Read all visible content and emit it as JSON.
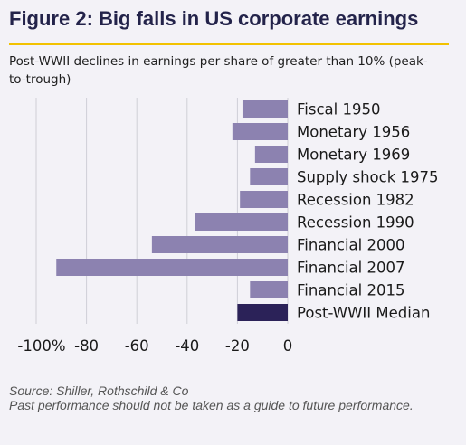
{
  "title": "Figure 2: Big falls in US corporate earnings",
  "subtitle": "Post-WWII declines in earnings per share of greater than 10% (peak-to-trough)",
  "source_line1": "Source: Shiller, Rothschild & Co",
  "source_line2": "Past performance should not be taken as a guide to future performance.",
  "chart_data": {
    "type": "bar",
    "orientation": "horizontal",
    "categories": [
      "Fiscal 1950",
      "Monetary 1956",
      "Monetary 1969",
      "Supply shock 1975",
      "Recession 1982",
      "Recession 1990",
      "Financial 2000",
      "Financial 2007",
      "Financial 2015",
      "Post-WWII Median"
    ],
    "values": [
      -18,
      -22,
      -13,
      -15,
      -19,
      -37,
      -54,
      -92,
      -15,
      -20
    ],
    "xlim": [
      -100,
      0
    ],
    "ticks": [
      -100,
      -80,
      -60,
      -40,
      -20,
      0
    ],
    "tick_labels": [
      "-100%",
      "-80",
      "-60",
      "-40",
      "-20",
      "0"
    ],
    "grid": true,
    "colors": {
      "bar": "#8c82b0",
      "highlight": "#2b2258",
      "grid": "#cfcfd6"
    },
    "highlight_index": 9
  }
}
